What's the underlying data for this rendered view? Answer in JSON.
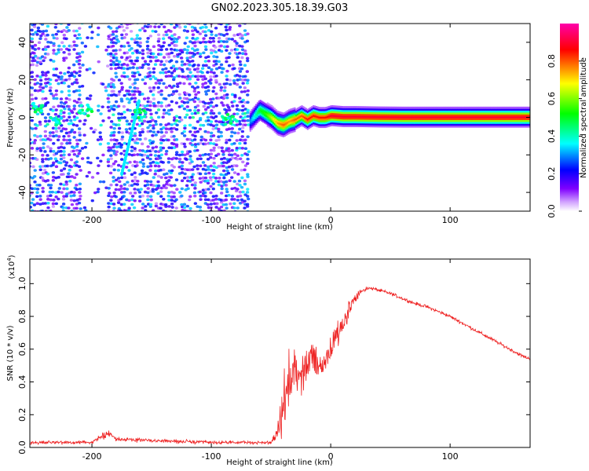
{
  "title": "GN02.2023.305.18.39.G03",
  "chart_data": [
    {
      "type": "heatmap",
      "xlabel": "Height of straight line (km)",
      "ylabel": "Frequency (Hz)",
      "xlim": [
        -252,
        167
      ],
      "ylim": [
        -50,
        50
      ],
      "x_ticks": [
        -200,
        -100,
        0,
        100
      ],
      "y_ticks": [
        -40,
        -20,
        0,
        20,
        40
      ],
      "colorbar": {
        "label": "Normalized spectral amplitude",
        "range": [
          0,
          1
        ],
        "ticks": [
          0.0,
          0.2,
          0.4,
          0.6,
          0.8
        ],
        "tick_labels": [
          "0.0",
          "0.2",
          "0.4",
          "0.6",
          "0.8"
        ],
        "colormap": [
          "#ffffff",
          "#7f00ff",
          "#0000ff",
          "#00ffff",
          "#00ff00",
          "#ffff00",
          "#ff0000",
          "#ff00aa"
        ]
      },
      "noise_region": {
        "x_range": [
          -252,
          -68
        ],
        "amplitude": [
          0.05,
          0.35
        ]
      },
      "gap_region": {
        "x_range": [
          -210,
          -188
        ]
      },
      "strong_patches": [
        {
          "x": -245,
          "y": 5,
          "value": 0.45
        },
        {
          "x": -205,
          "y": 4,
          "value": 0.45
        },
        {
          "x": -230,
          "y": -2,
          "value": 0.4
        },
        {
          "x": -160,
          "y": 2,
          "value": 0.45
        },
        {
          "x": -85,
          "y": -1,
          "value": 0.45
        }
      ],
      "diagonal_streak": {
        "from": [
          -175,
          -30
        ],
        "to": [
          -160,
          10
        ],
        "value": 0.35
      },
      "signal_track": {
        "x": [
          -68,
          -60,
          -55,
          -50,
          -45,
          -40,
          -35,
          -30,
          -25,
          -20,
          -15,
          -10,
          -5,
          0,
          10,
          20,
          40,
          60,
          80,
          100,
          120,
          140,
          167
        ],
        "y": [
          -2,
          4,
          2,
          0,
          -3,
          -4,
          -2,
          -1,
          1,
          -1,
          1,
          0,
          0,
          1,
          0.5,
          0.5,
          0.3,
          0.2,
          0.2,
          0.2,
          0.2,
          0.2,
          0.2
        ],
        "peak_amplitude": [
          0.3,
          0.5,
          0.55,
          0.65,
          0.75,
          0.8,
          0.75,
          0.8,
          0.8,
          0.85,
          0.85,
          0.85,
          0.85,
          0.9,
          0.9,
          0.9,
          0.9,
          0.9,
          0.9,
          0.9,
          0.9,
          0.9,
          0.9
        ]
      }
    },
    {
      "type": "line",
      "xlabel": "Height of straight line (km)",
      "ylabel": "SNR (10 * v/v)",
      "y_multiplier": "(x10",
      "y_multiplier_exp": "4",
      "y_multiplier_close": ")",
      "xlim": [
        -252,
        167
      ],
      "ylim": [
        0,
        1.15
      ],
      "x_ticks": [
        -200,
        -100,
        0,
        100
      ],
      "y_ticks": [
        0.0,
        0.2,
        0.4,
        0.6,
        0.8,
        1.0
      ],
      "color": "#ee2222",
      "series": [
        {
          "x": [
            -252,
            -200,
            -190,
            -185,
            -180,
            -100,
            -50,
            -45,
            -40,
            -35,
            -30,
            -25,
            -20,
            -15,
            -10,
            -5,
            0,
            5,
            10,
            15,
            20,
            25,
            30,
            35,
            40,
            50,
            60,
            70,
            80,
            90,
            100,
            110,
            120,
            130,
            140,
            150,
            160,
            167
          ],
          "y": [
            0.03,
            0.03,
            0.07,
            0.09,
            0.05,
            0.03,
            0.03,
            0.08,
            0.25,
            0.4,
            0.45,
            0.42,
            0.5,
            0.55,
            0.5,
            0.52,
            0.6,
            0.7,
            0.75,
            0.85,
            0.9,
            0.95,
            0.97,
            0.97,
            0.96,
            0.94,
            0.91,
            0.88,
            0.86,
            0.83,
            0.8,
            0.76,
            0.72,
            0.68,
            0.64,
            0.6,
            0.56,
            0.54
          ],
          "noise": [
            0.015,
            0.015,
            0.03,
            0.035,
            0.02,
            0.015,
            0.015,
            0.06,
            0.22,
            0.25,
            0.25,
            0.2,
            0.22,
            0.2,
            0.15,
            0.15,
            0.15,
            0.12,
            0.12,
            0.1,
            0.05,
            0.02,
            0.02,
            0.015,
            0.015,
            0.015,
            0.015,
            0.015,
            0.015,
            0.015,
            0.015,
            0.015,
            0.015,
            0.015,
            0.015,
            0.015,
            0.015,
            0.015
          ]
        }
      ]
    }
  ]
}
